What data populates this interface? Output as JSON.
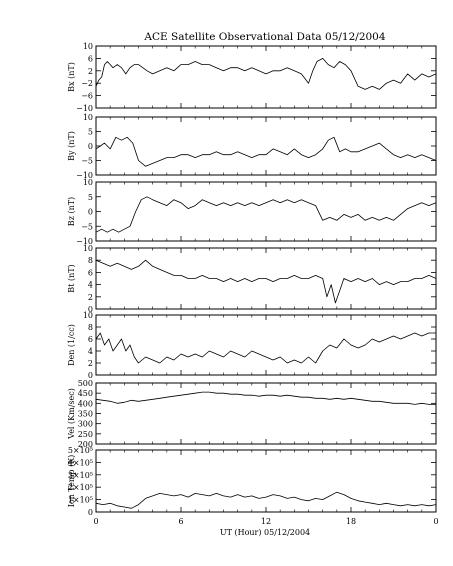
{
  "figure": {
    "title": "ACE Satellite Observational Data   05/12/2004",
    "xlabel": "UT (Hour)  05/12/2004",
    "x_ticks": [
      "0",
      "6",
      "12",
      "18",
      "0"
    ]
  },
  "chart_data": [
    {
      "type": "line",
      "ylabel": "Bx (nT)",
      "ylim": [
        -10,
        10
      ],
      "yticks": [
        -10,
        -6,
        -2,
        2,
        6,
        10
      ],
      "ytick_labels": [
        "−10",
        "−6",
        "−2",
        "2",
        "6",
        "10"
      ],
      "xlim": [
        0,
        24
      ],
      "x": [
        0,
        0.2,
        0.4,
        0.6,
        0.8,
        1.0,
        1.2,
        1.5,
        1.8,
        2.1,
        2.4,
        2.7,
        3.0,
        3.3,
        3.6,
        4.0,
        4.5,
        5.0,
        5.5,
        6.0,
        6.5,
        7.0,
        7.5,
        8.0,
        8.5,
        9.0,
        9.5,
        10.0,
        10.5,
        11.0,
        11.5,
        12.0,
        12.5,
        13.0,
        13.5,
        14.0,
        14.5,
        15.0,
        15.3,
        15.6,
        16.0,
        16.4,
        16.8,
        17.2,
        17.6,
        18.0,
        18.5,
        19.0,
        19.5,
        20.0,
        20.5,
        21.0,
        21.5,
        22.0,
        22.5,
        23.0,
        23.5,
        24.0
      ],
      "y": [
        -3,
        -1,
        0,
        4,
        5,
        4,
        3,
        4,
        3,
        1,
        3,
        4,
        4,
        3,
        2,
        1,
        2,
        3,
        2,
        4,
        4,
        5,
        4,
        4,
        3,
        2,
        3,
        3,
        2,
        3,
        2,
        1,
        2,
        2,
        3,
        2,
        1,
        -2,
        2,
        5,
        6,
        4,
        3,
        5,
        4,
        2,
        -3,
        -4,
        -3,
        -4,
        -2,
        -1,
        -2,
        1,
        -1,
        1,
        0,
        1
      ]
    },
    {
      "type": "line",
      "ylabel": "By (nT)",
      "ylim": [
        -10,
        10
      ],
      "yticks": [
        -10,
        -5,
        0,
        5,
        10
      ],
      "ytick_labels": [
        "−10",
        "−5",
        "0",
        "5",
        "10"
      ],
      "xlim": [
        0,
        24
      ],
      "x": [
        0,
        0.3,
        0.6,
        1.0,
        1.4,
        1.8,
        2.2,
        2.6,
        3.0,
        3.5,
        4.0,
        4.5,
        5.0,
        5.5,
        6.0,
        6.5,
        7.0,
        7.5,
        8.0,
        8.5,
        9.0,
        9.5,
        10.0,
        10.5,
        11.0,
        11.5,
        12.0,
        12.5,
        13.0,
        13.5,
        14.0,
        14.5,
        15.0,
        15.5,
        16.0,
        16.4,
        16.8,
        17.2,
        17.6,
        18.0,
        18.5,
        19.0,
        19.5,
        20.0,
        20.5,
        21.0,
        21.5,
        22.0,
        22.5,
        23.0,
        23.5,
        24.0
      ],
      "y": [
        -1,
        0,
        1,
        -1,
        3,
        2,
        3,
        1,
        -5,
        -7,
        -6,
        -5,
        -4,
        -4,
        -3,
        -3,
        -4,
        -3,
        -3,
        -2,
        -3,
        -3,
        -2,
        -3,
        -4,
        -3,
        -3,
        -1,
        -2,
        -3,
        -1,
        -3,
        -4,
        -3,
        -1,
        2,
        3,
        -2,
        -1,
        -2,
        -2,
        -1,
        0,
        1,
        -1,
        -3,
        -4,
        -3,
        -4,
        -3,
        -4,
        -5
      ]
    },
    {
      "type": "line",
      "ylabel": "Bz (nT)",
      "ylim": [
        -10,
        10
      ],
      "yticks": [
        -10,
        -5,
        0,
        5,
        10
      ],
      "ytick_labels": [
        "−10",
        "−5",
        "0",
        "5",
        "10"
      ],
      "xlim": [
        0,
        24
      ],
      "x": [
        0,
        0.4,
        0.8,
        1.2,
        1.6,
        2.0,
        2.4,
        2.8,
        3.2,
        3.6,
        4.0,
        4.5,
        5.0,
        5.5,
        6.0,
        6.5,
        7.0,
        7.5,
        8.0,
        8.5,
        9.0,
        9.5,
        10.0,
        10.5,
        11.0,
        11.5,
        12.0,
        12.5,
        13.0,
        13.5,
        14.0,
        14.5,
        15.0,
        15.5,
        16.0,
        16.5,
        17.0,
        17.5,
        18.0,
        18.5,
        19.0,
        19.5,
        20.0,
        20.5,
        21.0,
        21.5,
        22.0,
        22.5,
        23.0,
        23.5,
        24.0
      ],
      "y": [
        -7,
        -6,
        -7,
        -6,
        -7,
        -6,
        -5,
        0,
        4,
        5,
        4,
        3,
        2,
        4,
        3,
        1,
        2,
        4,
        3,
        2,
        3,
        2,
        3,
        2,
        3,
        2,
        3,
        4,
        3,
        4,
        3,
        4,
        3,
        2,
        -3,
        -2,
        -3,
        -1,
        -2,
        -1,
        -3,
        -2,
        -3,
        -2,
        -3,
        -1,
        1,
        2,
        3,
        2,
        3
      ]
    },
    {
      "type": "line",
      "ylabel": "Bt (nT)",
      "ylim": [
        0,
        10
      ],
      "yticks": [
        0,
        2,
        4,
        6,
        8,
        10
      ],
      "ytick_labels": [
        "0",
        "2",
        "4",
        "6",
        "8",
        "10"
      ],
      "xlim": [
        0,
        24
      ],
      "x": [
        0,
        0.5,
        1.0,
        1.5,
        2.0,
        2.5,
        3.0,
        3.5,
        4.0,
        4.5,
        5.0,
        5.5,
        6.0,
        6.5,
        7.0,
        7.5,
        8.0,
        8.5,
        9.0,
        9.5,
        10.0,
        10.5,
        11.0,
        11.5,
        12.0,
        12.5,
        13.0,
        13.5,
        14.0,
        14.5,
        15.0,
        15.5,
        16.0,
        16.3,
        16.6,
        16.9,
        17.2,
        17.5,
        18.0,
        18.5,
        19.0,
        19.5,
        20.0,
        20.5,
        21.0,
        21.5,
        22.0,
        22.5,
        23.0,
        23.5,
        24.0
      ],
      "y": [
        8,
        7.5,
        7,
        7.5,
        7,
        6.5,
        7,
        8,
        7,
        6.5,
        6,
        5.5,
        5.5,
        5,
        5,
        5.5,
        5,
        5,
        4.5,
        5,
        4.5,
        5,
        4.5,
        5,
        5,
        4.5,
        5,
        5,
        5.5,
        5,
        5,
        5.5,
        5,
        2,
        4,
        1,
        3,
        5,
        4.5,
        5,
        4.5,
        5,
        4,
        4.5,
        4,
        4.5,
        4.5,
        5,
        5,
        5.5,
        5
      ]
    },
    {
      "type": "line",
      "ylabel": "Den (1/cc)",
      "ylim": [
        0,
        10
      ],
      "yticks": [
        0,
        2,
        4,
        6,
        8,
        10
      ],
      "ytick_labels": [
        "0",
        "2",
        "4",
        "6",
        "8",
        "10"
      ],
      "xlim": [
        0,
        24
      ],
      "x": [
        0,
        0.3,
        0.6,
        0.9,
        1.2,
        1.5,
        1.8,
        2.1,
        2.4,
        2.7,
        3.0,
        3.5,
        4.0,
        4.5,
        5.0,
        5.5,
        6.0,
        6.5,
        7.0,
        7.5,
        8.0,
        8.5,
        9.0,
        9.5,
        10.0,
        10.5,
        11.0,
        11.5,
        12.0,
        12.5,
        13.0,
        13.5,
        14.0,
        14.5,
        15.0,
        15.5,
        16.0,
        16.5,
        17.0,
        17.5,
        18.0,
        18.5,
        19.0,
        19.5,
        20.0,
        20.5,
        21.0,
        21.5,
        22.0,
        22.5,
        23.0,
        23.5,
        24.0
      ],
      "y": [
        6,
        7,
        5,
        6,
        4,
        5,
        6,
        4,
        5,
        3,
        2,
        3,
        2.5,
        2,
        3,
        2.5,
        3.5,
        3,
        3.5,
        3,
        4,
        3.5,
        3,
        4,
        3.5,
        3,
        4,
        3.5,
        3,
        2.5,
        3,
        2,
        2.5,
        2,
        3,
        2,
        4,
        5,
        4.5,
        6,
        5,
        4.5,
        5,
        6,
        5.5,
        6,
        6.5,
        6,
        6.5,
        7,
        6.5,
        7,
        7
      ]
    },
    {
      "type": "line",
      "ylabel": "Vel (Km/sec)",
      "ylim": [
        200,
        500
      ],
      "yticks": [
        200,
        250,
        300,
        350,
        400,
        450,
        500
      ],
      "ytick_labels": [
        "200",
        "250",
        "300",
        "350",
        "400",
        "450",
        "500"
      ],
      "xlim": [
        0,
        24
      ],
      "x": [
        0,
        0.5,
        1.0,
        1.5,
        2.0,
        2.5,
        3.0,
        3.5,
        4.0,
        4.5,
        5.0,
        5.5,
        6.0,
        6.5,
        7.0,
        7.5,
        8.0,
        8.5,
        9.0,
        9.5,
        10.0,
        10.5,
        11.0,
        11.5,
        12.0,
        12.5,
        13.0,
        13.5,
        14.0,
        14.5,
        15.0,
        15.5,
        16.0,
        16.5,
        17.0,
        17.5,
        18.0,
        18.5,
        19.0,
        19.5,
        20.0,
        20.5,
        21.0,
        21.5,
        22.0,
        22.5,
        23.0,
        23.5,
        24.0
      ],
      "y": [
        420,
        415,
        410,
        400,
        405,
        415,
        410,
        415,
        420,
        425,
        430,
        435,
        440,
        445,
        450,
        455,
        455,
        450,
        450,
        445,
        445,
        440,
        440,
        435,
        440,
        440,
        435,
        440,
        435,
        430,
        430,
        425,
        425,
        420,
        425,
        420,
        425,
        420,
        415,
        410,
        410,
        405,
        400,
        400,
        400,
        395,
        400,
        395,
        395
      ]
    },
    {
      "type": "line",
      "ylabel": "Ion Temp (K)",
      "ylim": [
        0,
        500000
      ],
      "yticks": [
        0,
        100000,
        200000,
        300000,
        400000,
        500000
      ],
      "ytick_labels": [
        "0",
        "1×10⁵",
        "2×10⁵",
        "3×10⁵",
        "4×10⁵",
        "5×10⁵"
      ],
      "xlim": [
        0,
        24
      ],
      "x": [
        0,
        0.5,
        1.0,
        1.5,
        2.0,
        2.5,
        3.0,
        3.5,
        4.0,
        4.5,
        5.0,
        5.5,
        6.0,
        6.5,
        7.0,
        7.5,
        8.0,
        8.5,
        9.0,
        9.5,
        10.0,
        10.5,
        11.0,
        11.5,
        12.0,
        12.5,
        13.0,
        13.5,
        14.0,
        14.5,
        15.0,
        15.5,
        16.0,
        16.5,
        17.0,
        17.5,
        18.0,
        18.5,
        19.0,
        19.5,
        20.0,
        20.5,
        21.0,
        21.5,
        22.0,
        22.5,
        23.0,
        23.5,
        24.0
      ],
      "y": [
        70000,
        60000,
        70000,
        50000,
        40000,
        30000,
        60000,
        110000,
        130000,
        150000,
        140000,
        130000,
        140000,
        120000,
        150000,
        140000,
        130000,
        150000,
        130000,
        120000,
        140000,
        120000,
        130000,
        110000,
        120000,
        140000,
        130000,
        110000,
        120000,
        100000,
        90000,
        110000,
        100000,
        130000,
        160000,
        140000,
        110000,
        90000,
        80000,
        70000,
        60000,
        70000,
        60000,
        50000,
        60000,
        50000,
        60000,
        50000,
        60000
      ]
    }
  ]
}
